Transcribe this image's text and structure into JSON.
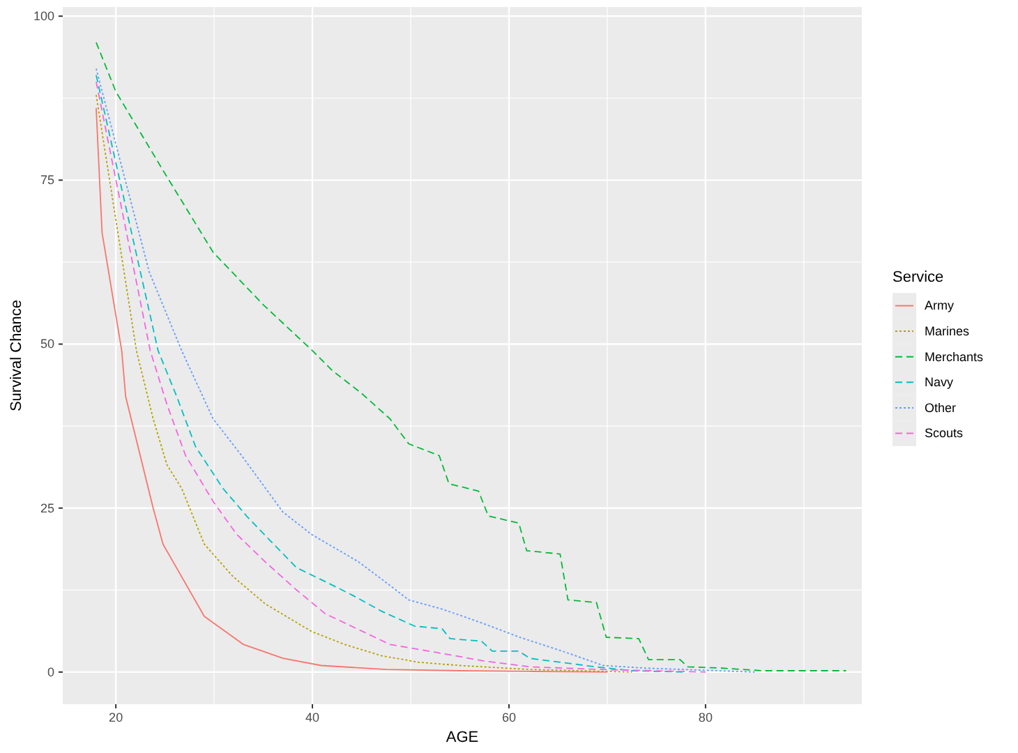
{
  "chart_data": {
    "type": "line",
    "xlabel": "AGE",
    "ylabel": "Survival Chance",
    "legend_title": "Service",
    "xlim": [
      14.6,
      95.9
    ],
    "ylim": [
      -4.9,
      101.4
    ],
    "xticks": [
      20,
      40,
      60,
      80
    ],
    "yticks": [
      0,
      25,
      50,
      75,
      100
    ],
    "grid": true,
    "legend": "right",
    "series": [
      {
        "name": "Army",
        "color": "#f8766d",
        "line_style": "solid",
        "x": [
          18,
          18.6,
          20.6,
          21,
          23.8,
          24.8,
          29,
          33,
          37,
          40.9,
          47.5,
          55,
          62,
          70
        ],
        "values": [
          86,
          67,
          49,
          42,
          25,
          19.5,
          8.5,
          4.2,
          2.1,
          1,
          0.4,
          0.2,
          0.1,
          0
        ]
      },
      {
        "name": "Marines",
        "color": "#b79f00",
        "line_style": "dotted",
        "x": [
          18,
          22.1,
          23.8,
          25.2,
          26.7,
          29,
          31.9,
          35.2,
          39.9,
          43.3,
          47,
          50.8,
          55,
          62,
          72.5
        ],
        "values": [
          88,
          49,
          38.6,
          31.6,
          28,
          19.5,
          14.6,
          10.4,
          6.2,
          4.2,
          2.5,
          1.5,
          1,
          0.4,
          0
        ]
      },
      {
        "name": "Merchants",
        "color": "#00ba38",
        "line_style": "dashed",
        "x": [
          18,
          20,
          25,
          29.9,
          35,
          40,
          42,
          45,
          47.9,
          49.8,
          52.9,
          53.9,
          56.9,
          57.9,
          61,
          61.8,
          65.2,
          66,
          68.9,
          69.9,
          73.2,
          74.2,
          77.4,
          78.2,
          81.7,
          85.8,
          94.3
        ],
        "values": [
          96,
          88.5,
          76,
          64,
          56,
          49,
          46,
          42.5,
          38.6,
          34.8,
          33,
          28.7,
          27.6,
          23.8,
          22.7,
          18.5,
          18,
          11,
          10.6,
          5.3,
          5.1,
          1.9,
          1.9,
          0.8,
          0.6,
          0.2,
          0.2
        ]
      },
      {
        "name": "Navy",
        "color": "#00bfc4",
        "line_style": "dashed",
        "x": [
          18,
          24.3,
          26.2,
          28.1,
          30.9,
          33.3,
          35.6,
          38.4,
          41.3,
          44.1,
          47,
          50.4,
          53.2,
          54,
          57.2,
          58.3,
          61,
          62.1,
          68.8,
          72.5,
          78
        ],
        "values": [
          91,
          49,
          42,
          34.4,
          28,
          23.8,
          20.2,
          15.9,
          13.8,
          11.7,
          9.3,
          7,
          6.6,
          5.1,
          4.7,
          3.2,
          3.2,
          2.1,
          0.8,
          0.2,
          0
        ]
      },
      {
        "name": "Other",
        "color": "#619cff",
        "line_style": "dotted",
        "x": [
          18,
          23.4,
          26.7,
          29.9,
          32.8,
          37,
          39.9,
          44.7,
          47.9,
          49.8,
          53.2,
          57.4,
          61.1,
          65.4,
          69.6,
          73.9,
          85
        ],
        "values": [
          92,
          61,
          49,
          38.6,
          33,
          24.4,
          21,
          16.8,
          13.2,
          11,
          9.6,
          7.4,
          5.3,
          3.2,
          1,
          0.6,
          0
        ]
      },
      {
        "name": "Scouts",
        "color": "#f564e3",
        "line_style": "dashed",
        "x": [
          18,
          23.5,
          25.2,
          27.1,
          29.9,
          32.3,
          35.2,
          38.4,
          41.3,
          45.1,
          47.9,
          52.6,
          57.4,
          62.1,
          69.2,
          80
        ],
        "values": [
          90,
          49,
          40.8,
          33,
          26,
          21,
          16.8,
          12.5,
          8.9,
          6.2,
          4.2,
          3,
          1.7,
          0.8,
          0.4,
          0
        ]
      }
    ]
  }
}
